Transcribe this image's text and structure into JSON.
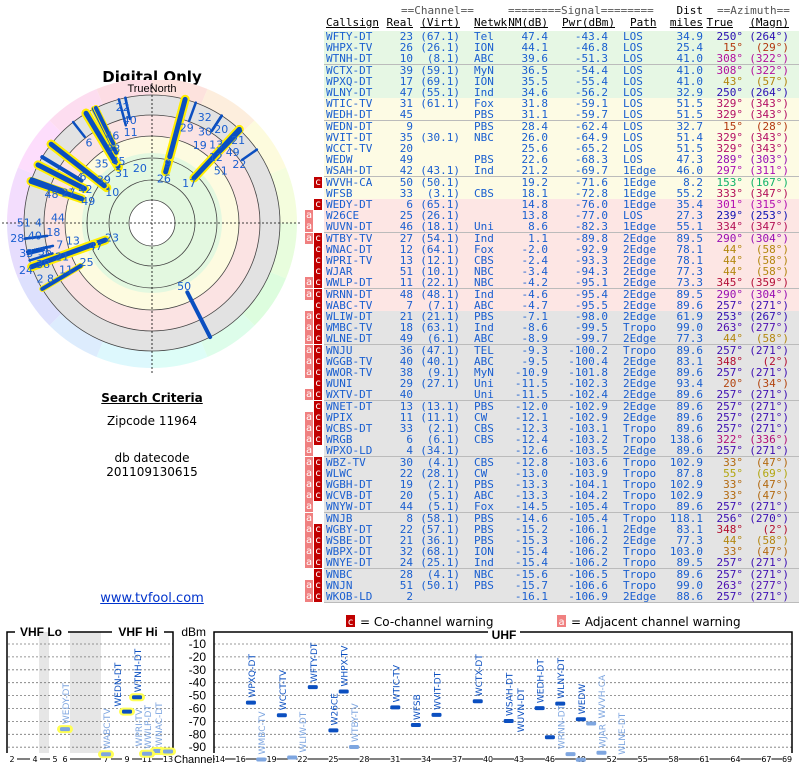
{
  "header": {
    "title": "Digital Only",
    "north_label": "TrueNorth"
  },
  "criteria": {
    "title": "Search Criteria",
    "zipcode": "Zipcode 11964",
    "db_label": "db datecode",
    "db_value": "201109130615"
  },
  "link": "www.tvfool.com",
  "table": {
    "group_channel": "==Channel==",
    "group_signal": "========Signal========",
    "group_dist": "Dist",
    "group_azimuth": "==Azimuth==",
    "columns": [
      "Callsign",
      "Real",
      "(Virt)",
      "Netwk",
      "NM(dB)",
      "Pwr(dBm)",
      "Path",
      "miles",
      "True",
      "(Magn)"
    ],
    "zone_colors": {
      "green": "#e6f7e4",
      "yellow": "#fdfbe4",
      "red": "#fde6e4",
      "gray": "#e4e4e4"
    },
    "rows": [
      [
        "",
        "WFTY-DT",
        "23",
        "(67.1)",
        "Tel",
        "47.4",
        "-43.4",
        "LOS",
        "34.9",
        "250°",
        "(264°)",
        "green"
      ],
      [
        "",
        "WHPX-TV",
        "26",
        "(26.1)",
        "ION",
        "44.1",
        "-46.8",
        "LOS",
        "25.4",
        "15°",
        "(29°)",
        "green"
      ],
      [
        "",
        "WTNH-DT",
        "10",
        "(8.1)",
        "ABC",
        "39.6",
        "-51.3",
        "LOS",
        "41.0",
        "308°",
        "(322°)",
        "green"
      ],
      [
        "",
        "WCTX-DT",
        "39",
        "(59.1)",
        "MyN",
        "36.5",
        "-54.4",
        "LOS",
        "41.0",
        "308°",
        "(322°)",
        "green"
      ],
      [
        "",
        "WPXQ-DT",
        "17",
        "(69.1)",
        "ION",
        "35.5",
        "-55.4",
        "LOS",
        "41.0",
        "43°",
        "(57°)",
        "green"
      ],
      [
        "",
        "WLNY-DT",
        "47",
        "(55.1)",
        "Ind",
        "34.6",
        "-56.2",
        "LOS",
        "32.9",
        "250°",
        "(264°)",
        "green"
      ],
      [
        "",
        "WTIC-TV",
        "31",
        "(61.1)",
        "Fox",
        "31.8",
        "-59.1",
        "LOS",
        "51.5",
        "329°",
        "(343°)",
        "yellow"
      ],
      [
        "",
        "WEDH-DT",
        "45",
        "",
        "PBS",
        "31.1",
        "-59.7",
        "LOS",
        "51.5",
        "329°",
        "(343°)",
        "yellow"
      ],
      [
        "",
        "WEDN-DT",
        "9",
        "",
        "PBS",
        "28.4",
        "-62.4",
        "LOS",
        "32.7",
        "15°",
        "(28°)",
        "yellow"
      ],
      [
        "",
        "WVIT-DT",
        "35",
        "(30.1)",
        "NBC",
        "26.0",
        "-64.9",
        "LOS",
        "51.4",
        "329°",
        "(343°)",
        "yellow"
      ],
      [
        "",
        "WCCT-TV",
        "20",
        "",
        "",
        "25.6",
        "-65.2",
        "LOS",
        "51.5",
        "329°",
        "(343°)",
        "yellow"
      ],
      [
        "",
        "WEDW",
        "49",
        "",
        "PBS",
        "22.6",
        "-68.3",
        "LOS",
        "47.3",
        "289°",
        "(303°)",
        "yellow"
      ],
      [
        "",
        "WSAH-DT",
        "42",
        "(43.1)",
        "Ind",
        "21.2",
        "-69.7",
        "1Edge",
        "46.0",
        "297°",
        "(311°)",
        "yellow"
      ],
      [
        "c",
        "WVVH-CA",
        "50",
        "(50.1)",
        "",
        "19.2",
        "-71.6",
        "1Edge",
        "8.2",
        "153°",
        "(167°)",
        "yellow"
      ],
      [
        "",
        "WFSB",
        "33",
        "(3.1)",
        "CBS",
        "18.1",
        "-72.8",
        "1Edge",
        "55.2",
        "333°",
        "(347°)",
        "yellow"
      ],
      [
        "c",
        "WEDY-DT",
        "6",
        "(65.1)",
        "",
        "14.8",
        "-76.0",
        "1Edge",
        "35.4",
        "301°",
        "(315°)",
        "red"
      ],
      [
        "a",
        "W26CE",
        "25",
        "(26.1)",
        "",
        "13.8",
        "-77.0",
        "LOS",
        "27.3",
        "239°",
        "(253°)",
        "red"
      ],
      [
        "a",
        "WUVN-DT",
        "46",
        "(18.1)",
        "Uni",
        "8.6",
        "-82.3",
        "1Edge",
        "55.1",
        "334°",
        "(347°)",
        "red"
      ],
      [
        "ac",
        "WTBY-TV",
        "27",
        "(54.1)",
        "Ind",
        "1.1",
        "-89.8",
        "2Edge",
        "89.5",
        "290°",
        "(304°)",
        "red"
      ],
      [
        "c",
        "WNAC-DT",
        "12",
        "(64.1)",
        "Fox",
        "-2.0",
        "-92.9",
        "2Edge",
        "78.1",
        "44°",
        "(58°)",
        "red"
      ],
      [
        "c",
        "WPRI-TV",
        "13",
        "(12.1)",
        "CBS",
        "-2.4",
        "-93.3",
        "2Edge",
        "78.1",
        "44°",
        "(58°)",
        "red"
      ],
      [
        "c",
        "WJAR",
        "51",
        "(10.1)",
        "NBC",
        "-3.4",
        "-94.3",
        "2Edge",
        "77.3",
        "44°",
        "(58°)",
        "red"
      ],
      [
        "ac",
        "WWLP-DT",
        "11",
        "(22.1)",
        "NBC",
        "-4.2",
        "-95.1",
        "2Edge",
        "73.3",
        "345°",
        "(359°)",
        "red"
      ],
      [
        "ac",
        "WRNN-DT",
        "48",
        "(48.1)",
        "Ind",
        "-4.6",
        "-95.4",
        "2Edge",
        "89.5",
        "290°",
        "(304°)",
        "red"
      ],
      [
        "c",
        "WABC-TV",
        "7",
        "(7.1)",
        "ABC",
        "-4.7",
        "-95.5",
        "2Edge",
        "89.6",
        "257°",
        "(271°)",
        "red"
      ],
      [
        "ac",
        "WLIW-DT",
        "21",
        "(21.1)",
        "PBS",
        "-7.1",
        "-98.0",
        "2Edge",
        "61.9",
        "253°",
        "(267°)",
        "gray"
      ],
      [
        "ac",
        "WMBC-TV",
        "18",
        "(63.1)",
        "Ind",
        "-8.6",
        "-99.5",
        "Tropo",
        "99.0",
        "263°",
        "(277°)",
        "gray"
      ],
      [
        "ac",
        "WLNE-DT",
        "49",
        "(6.1)",
        "ABC",
        "-8.9",
        "-99.7",
        "2Edge",
        "77.3",
        "44°",
        "(58°)",
        "gray"
      ],
      [
        "ac",
        "WNJU",
        "36",
        "(47.1)",
        "TEL",
        "-9.3",
        "-100.2",
        "Tropo",
        "89.6",
        "257°",
        "(271°)",
        "gray"
      ],
      [
        "ac",
        "WGGB-TV",
        "40",
        "(40.1)",
        "ABC",
        "-9.5",
        "-100.4",
        "2Edge",
        "83.1",
        "348°",
        "(2°)",
        "gray"
      ],
      [
        "ac",
        "WWOR-TV",
        "38",
        "(9.1)",
        "MyN",
        "-10.9",
        "-101.8",
        "2Edge",
        "89.6",
        "257°",
        "(271°)",
        "gray"
      ],
      [
        "c",
        "WUNI",
        "29",
        "(27.1)",
        "Uni",
        "-11.5",
        "-102.3",
        "2Edge",
        "93.4",
        "20°",
        "(34°)",
        "gray"
      ],
      [
        "ac",
        "WXTV-DT",
        "40",
        "",
        "Uni",
        "-11.5",
        "-102.4",
        "2Edge",
        "89.6",
        "257°",
        "(271°)",
        "gray"
      ],
      [
        "c",
        "WNET-DT",
        "13",
        "(13.1)",
        "PBS",
        "-12.0",
        "-102.9",
        "2Edge",
        "89.6",
        "257°",
        "(271°)",
        "gray"
      ],
      [
        "ac",
        "WPIX",
        "11",
        "(11.1)",
        "CW",
        "-12.1",
        "-102.9",
        "2Edge",
        "89.6",
        "257°",
        "(271°)",
        "gray"
      ],
      [
        "ac",
        "WCBS-DT",
        "33",
        "(2.1)",
        "CBS",
        "-12.3",
        "-103.1",
        "Tropo",
        "89.6",
        "257°",
        "(271°)",
        "gray"
      ],
      [
        "ac",
        "WRGB",
        "6",
        "(6.1)",
        "CBS",
        "-12.4",
        "-103.2",
        "Tropo",
        "138.6",
        "322°",
        "(336°)",
        "gray"
      ],
      [
        "a",
        "WPXO-LD",
        "4",
        "(34.1)",
        "",
        "-12.6",
        "-103.5",
        "2Edge",
        "89.6",
        "257°",
        "(271°)",
        "gray"
      ],
      [
        "ac",
        "WBZ-TV",
        "30",
        "(4.1)",
        "CBS",
        "-12.8",
        "-103.6",
        "Tropo",
        "102.9",
        "33°",
        "(47°)",
        "gray"
      ],
      [
        "ac",
        "WLWC",
        "22",
        "(28.1)",
        "CW",
        "-13.0",
        "-103.9",
        "Tropo",
        "87.8",
        "55°",
        "(69°)",
        "gray"
      ],
      [
        "ac",
        "WGBH-DT",
        "19",
        "(2.1)",
        "PBS",
        "-13.3",
        "-104.1",
        "Tropo",
        "102.9",
        "33°",
        "(47°)",
        "gray"
      ],
      [
        "ac",
        "WCVB-DT",
        "20",
        "(5.1)",
        "ABC",
        "-13.3",
        "-104.2",
        "Tropo",
        "102.9",
        "33°",
        "(47°)",
        "gray"
      ],
      [
        "a",
        "WNYW-DT",
        "44",
        "(5.1)",
        "Fox",
        "-14.5",
        "-105.4",
        "Tropo",
        "89.6",
        "257°",
        "(271°)",
        "gray"
      ],
      [
        "a",
        "WNJB",
        "8",
        "(58.1)",
        "PBS",
        "-14.6",
        "-105.4",
        "Tropo",
        "118.1",
        "256°",
        "(270°)",
        "gray"
      ],
      [
        "ac",
        "WGBY-DT",
        "22",
        "(57.1)",
        "PBS",
        "-15.2",
        "-106.1",
        "2Edge",
        "83.1",
        "348°",
        "(2°)",
        "gray"
      ],
      [
        "ac",
        "WSBE-DT",
        "21",
        "(36.1)",
        "PBS",
        "-15.3",
        "-106.2",
        "2Edge",
        "77.3",
        "44°",
        "(58°)",
        "gray"
      ],
      [
        "ac",
        "WBPX-DT",
        "32",
        "(68.1)",
        "ION",
        "-15.4",
        "-106.2",
        "Tropo",
        "103.0",
        "33°",
        "(47°)",
        "gray"
      ],
      [
        "ac",
        "WNYE-DT",
        "24",
        "(25.1)",
        "Ind",
        "-15.4",
        "-106.2",
        "Tropo",
        "89.5",
        "257°",
        "(271°)",
        "gray"
      ],
      [
        "c",
        "WNBC",
        "28",
        "(4.1)",
        "NBC",
        "-15.6",
        "-106.5",
        "Tropo",
        "89.6",
        "257°",
        "(271°)",
        "gray"
      ],
      [
        "ac",
        "WNJN",
        "51",
        "(50.1)",
        "PBS",
        "-15.7",
        "-106.6",
        "Tropo",
        "99.0",
        "263°",
        "(277°)",
        "gray"
      ],
      [
        "ac",
        "WKOB-LD",
        "2",
        "",
        "",
        "-16.1",
        "-106.9",
        "2Edge",
        "88.6",
        "257°",
        "(271°)",
        "gray"
      ]
    ]
  },
  "legend": {
    "c_badge": "c",
    "c_text": "= Co-channel warning",
    "a_badge": "a",
    "a_text": "= Adjacent channel warning",
    "c_color": "#c00000",
    "a_color": "#f08080"
  },
  "chart_data": {
    "type": "scatter",
    "title_vhf_lo": "VHF Lo",
    "title_vhf_hi": "VHF Hi",
    "title_uhf": "UHF",
    "ylabel": "dBm",
    "xlabel": "Channel",
    "yticks": [
      "-10",
      "-20",
      "-30",
      "-40",
      "-50",
      "-60",
      "-70",
      "-80",
      "-90"
    ],
    "ylim": [
      -100,
      0
    ],
    "vhf_ticks": [
      "2",
      "4",
      "5",
      "6",
      "7",
      "9",
      "11",
      "13"
    ],
    "uhf_ticks": [
      "14",
      "16",
      "19",
      "22",
      "25",
      "28",
      "31",
      "34",
      "37",
      "40",
      "43",
      "46",
      "49",
      "52",
      "55",
      "58",
      "61",
      "64",
      "67",
      "69"
    ]
  }
}
